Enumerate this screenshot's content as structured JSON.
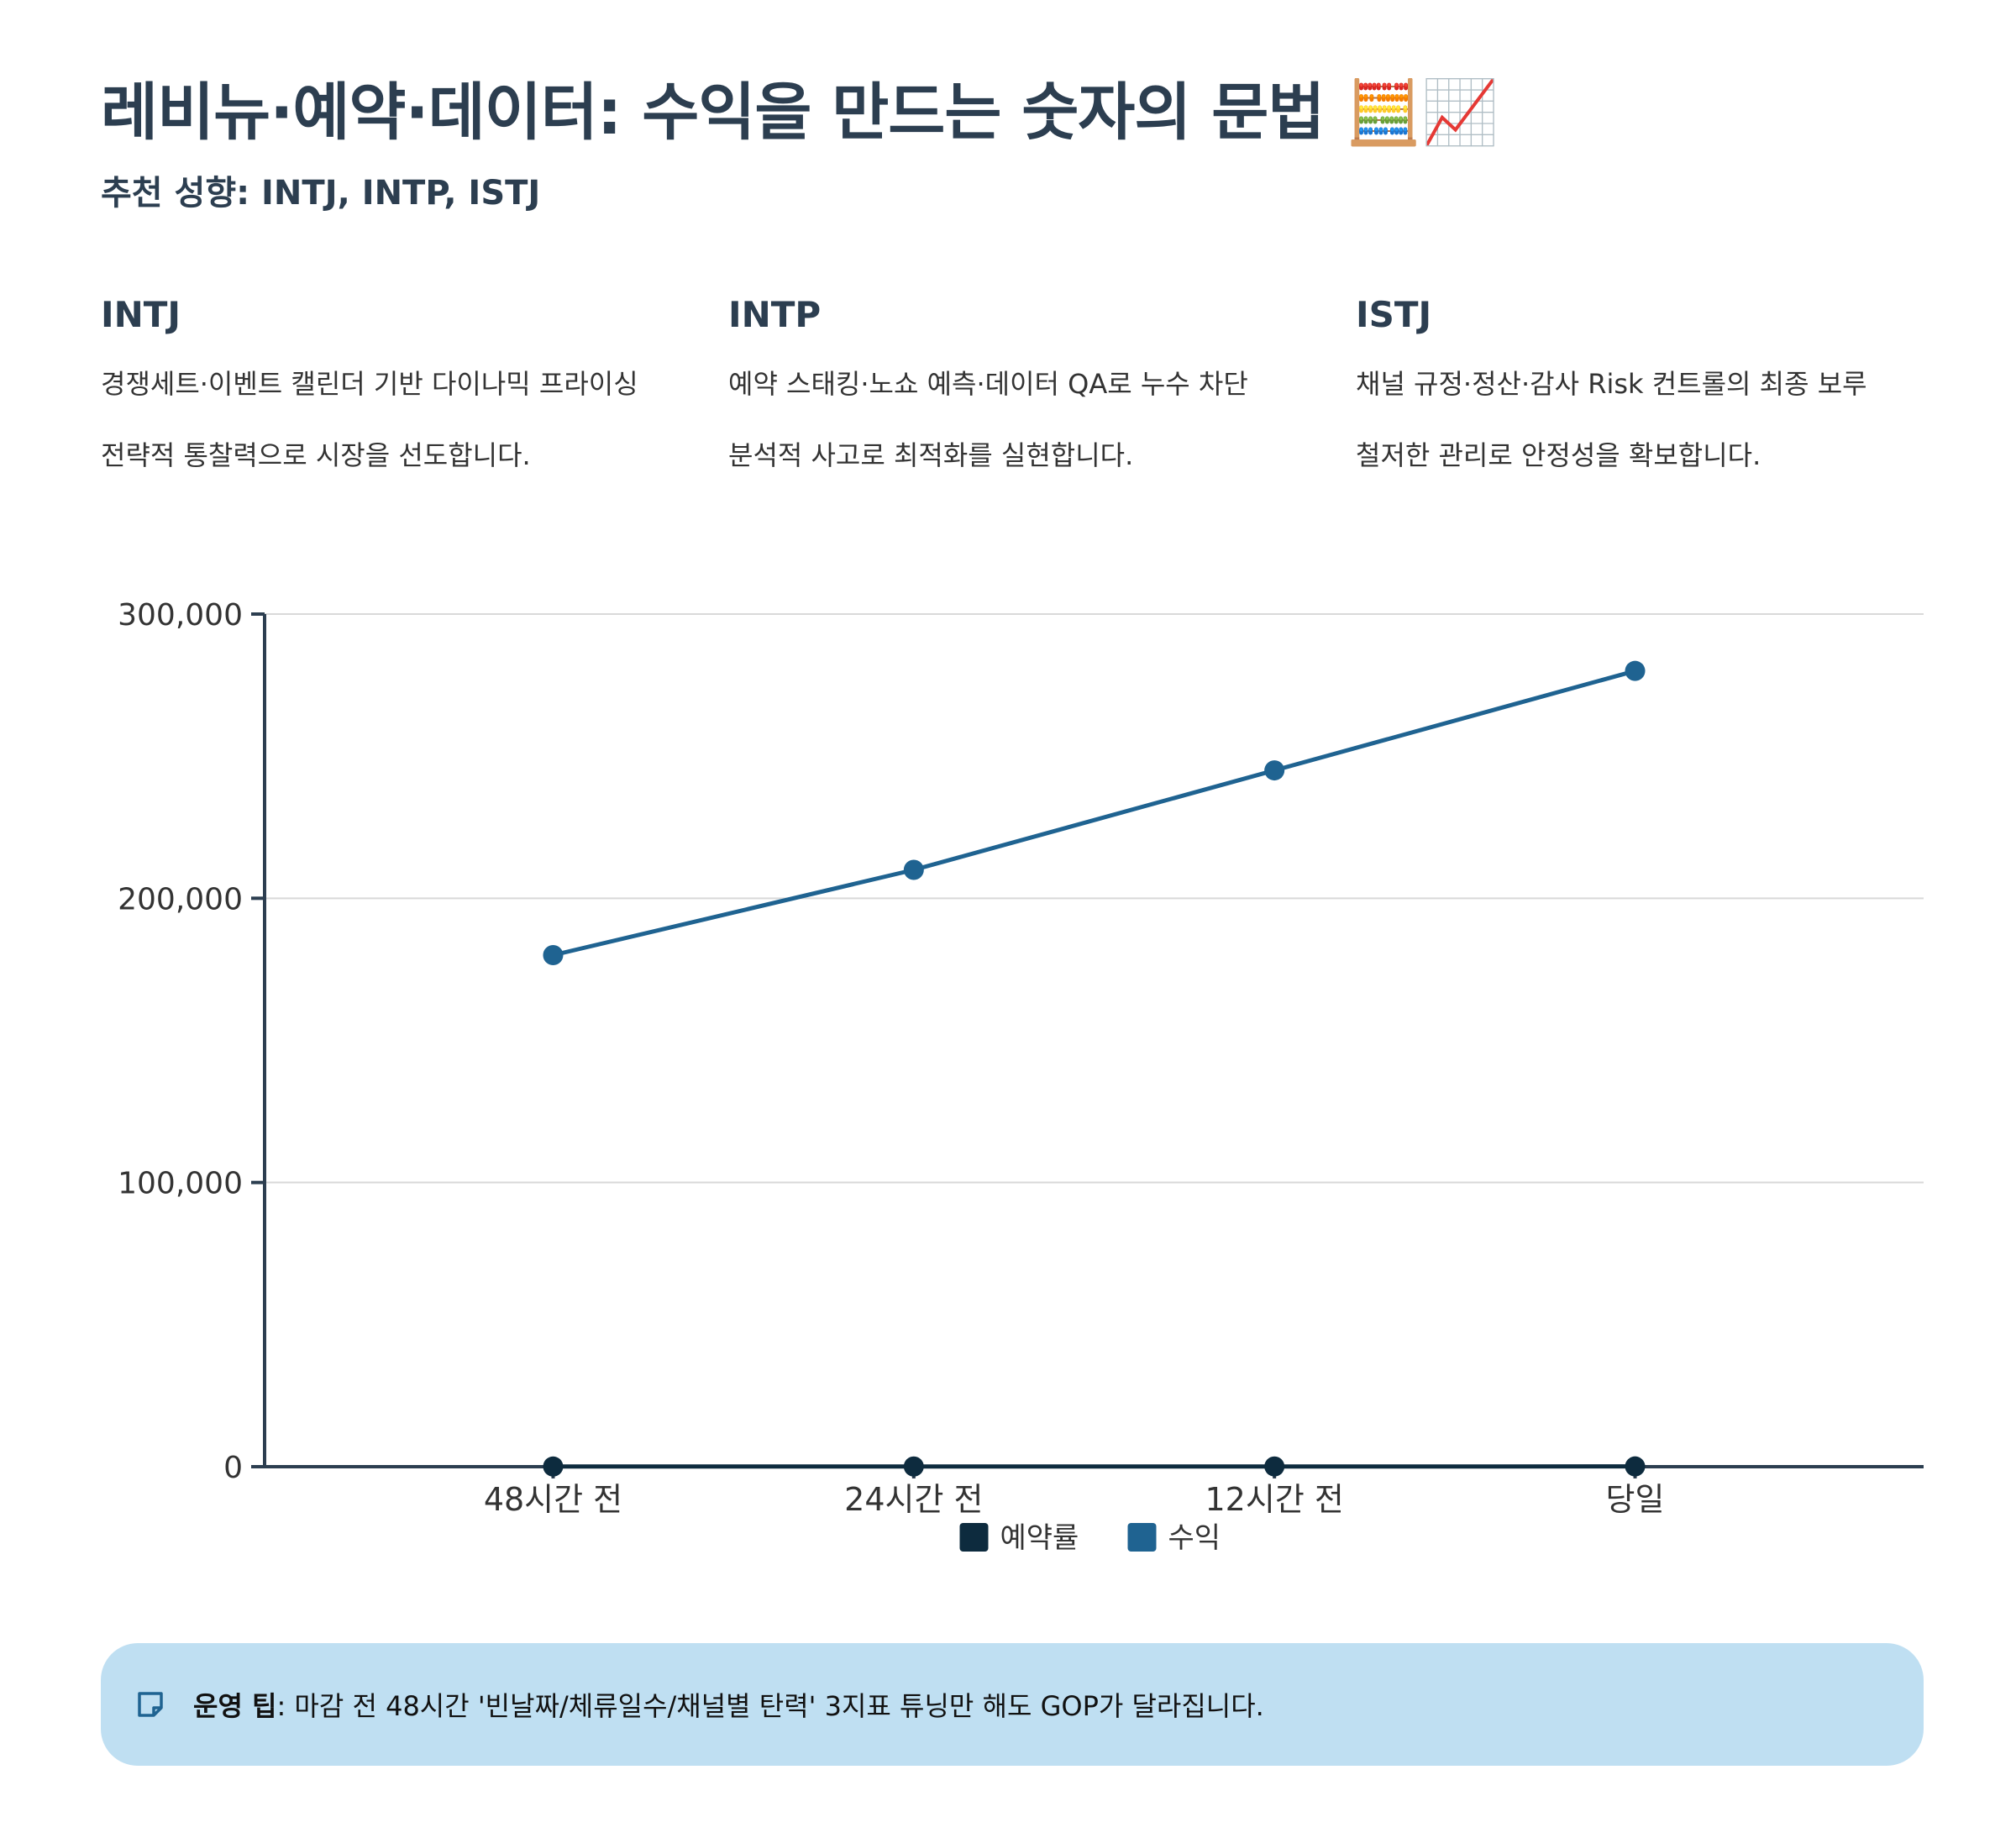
{
  "page": {
    "title": "레비뉴·예약·데이터: 수익을 만드는 숫자의 문법 🧮📈",
    "subtitle": "추천 성향: INTJ, INTP, ISTJ"
  },
  "types": [
    {
      "name": "INTJ",
      "desc": "경쟁세트·이벤트 캘린더 기반 다이나믹 프라이싱",
      "note": "전략적 통찰력으로 시장을 선도합니다."
    },
    {
      "name": "INTP",
      "desc": "예약 스태킹·노쇼 예측·데이터 QA로 누수 차단",
      "note": "분석적 사고로 최적화를 실현합니다."
    },
    {
      "name": "ISTJ",
      "desc": "채널 규정·정산·감사 Risk 컨트롤의 최종 보루",
      "note": "철저한 관리로 안정성을 확보합니다."
    }
  ],
  "chart_data": {
    "type": "line",
    "categories": [
      "48시간 전",
      "24시간 전",
      "12시간 전",
      "당일"
    ],
    "series": [
      {
        "name": "예약률",
        "values": [
          65,
          75,
          85,
          95
        ],
        "color": "#0d2b3e"
      },
      {
        "name": "수익",
        "values": [
          180000,
          210000,
          245000,
          280000
        ],
        "color": "#1f6391"
      }
    ],
    "ylim": [
      0,
      300000
    ],
    "yticks": [
      0,
      100000,
      200000,
      300000
    ],
    "ytick_labels": [
      "0",
      "100,000",
      "200,000",
      "300,000"
    ],
    "grid": true,
    "legend": "bottom-center"
  },
  "tip": {
    "label": "운영 팁",
    "text": ": 마감 전 48시간 '빈날짜/체류일수/채널별 탄력' 3지표 튜닝만 해도 GOP가 달라집니다.",
    "icon": "sticky-note-icon"
  }
}
